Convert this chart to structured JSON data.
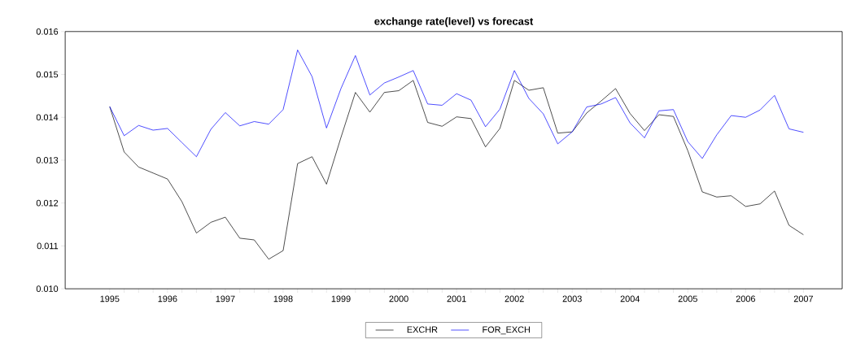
{
  "chart_data": {
    "type": "line",
    "title": "exchange rate(level) vs forecast",
    "x": [
      1995,
      1995.25,
      1995.5,
      1995.75,
      1996,
      1996.25,
      1996.5,
      1996.75,
      1997,
      1997.25,
      1997.5,
      1997.75,
      1998,
      1998.25,
      1998.5,
      1998.75,
      1999,
      1999.25,
      1999.5,
      1999.75,
      2000,
      2000.25,
      2000.5,
      2000.75,
      2001,
      2001.25,
      2001.5,
      2001.75,
      2002,
      2002.25,
      2002.5,
      2002.75,
      2003,
      2003.25,
      2003.5,
      2003.75,
      2004,
      2004.25,
      2004.5,
      2004.75,
      2005,
      2005.25,
      2005.5,
      2005.75,
      2006,
      2006.25,
      2006.5,
      2006.75,
      2007
    ],
    "series": [
      {
        "name": "EXCHR",
        "color": "#000000",
        "values": [
          0.01425,
          0.01319,
          0.01284,
          0.0127,
          0.01256,
          0.01203,
          0.0113,
          0.01155,
          0.01167,
          0.01118,
          0.01114,
          0.01069,
          0.01089,
          0.01292,
          0.01308,
          0.01244,
          0.01353,
          0.01458,
          0.01412,
          0.01458,
          0.01462,
          0.01486,
          0.01388,
          0.01379,
          0.01401,
          0.01397,
          0.01331,
          0.01374,
          0.01486,
          0.01463,
          0.01469,
          0.01363,
          0.01366,
          0.0141,
          0.01438,
          0.01467,
          0.01409,
          0.01369,
          0.01406,
          0.01402,
          0.01322,
          0.01226,
          0.01214,
          0.01217,
          0.01192,
          0.01198,
          0.01228,
          0.01148,
          0.01126
        ]
      },
      {
        "name": "FOR_EXCH",
        "color": "#0000ff",
        "values": [
          0.01425,
          0.01357,
          0.01381,
          0.0137,
          0.01374,
          0.01341,
          0.01308,
          0.01372,
          0.01411,
          0.0138,
          0.0139,
          0.01384,
          0.01418,
          0.01557,
          0.01495,
          0.01375,
          0.01467,
          0.01544,
          0.01452,
          0.0148,
          0.01494,
          0.01509,
          0.01431,
          0.01428,
          0.01455,
          0.0144,
          0.01378,
          0.01419,
          0.01509,
          0.01444,
          0.01408,
          0.01338,
          0.01366,
          0.01424,
          0.01431,
          0.01446,
          0.01387,
          0.01352,
          0.01415,
          0.01418,
          0.01343,
          0.01304,
          0.01359,
          0.01404,
          0.014,
          0.01417,
          0.01451,
          0.01373,
          0.01365
        ]
      }
    ],
    "xlim": [
      1994.23,
      2007.67
    ],
    "xticks": [
      {
        "value": 1995,
        "label": "1995"
      },
      {
        "value": 1995.25,
        "label": null
      },
      {
        "value": 1995.5,
        "label": null
      },
      {
        "value": 1995.75,
        "label": null
      },
      {
        "value": 1996,
        "label": "1996"
      },
      {
        "value": 1996.25,
        "label": null
      },
      {
        "value": 1996.5,
        "label": null
      },
      {
        "value": 1996.75,
        "label": null
      },
      {
        "value": 1997,
        "label": "1997"
      },
      {
        "value": 1997.25,
        "label": null
      },
      {
        "value": 1997.5,
        "label": null
      },
      {
        "value": 1997.75,
        "label": null
      },
      {
        "value": 1998,
        "label": "1998"
      },
      {
        "value": 1998.25,
        "label": null
      },
      {
        "value": 1998.5,
        "label": null
      },
      {
        "value": 1998.75,
        "label": null
      },
      {
        "value": 1999,
        "label": "1999"
      },
      {
        "value": 1999.25,
        "label": null
      },
      {
        "value": 1999.5,
        "label": null
      },
      {
        "value": 1999.75,
        "label": null
      },
      {
        "value": 2000,
        "label": "2000"
      },
      {
        "value": 2000.25,
        "label": null
      },
      {
        "value": 2000.5,
        "label": null
      },
      {
        "value": 2000.75,
        "label": null
      },
      {
        "value": 2001,
        "label": "2001"
      },
      {
        "value": 2001.25,
        "label": null
      },
      {
        "value": 2001.5,
        "label": null
      },
      {
        "value": 2001.75,
        "label": null
      },
      {
        "value": 2002,
        "label": "2002"
      },
      {
        "value": 2002.25,
        "label": null
      },
      {
        "value": 2002.5,
        "label": null
      },
      {
        "value": 2002.75,
        "label": null
      },
      {
        "value": 2003,
        "label": "2003"
      },
      {
        "value": 2003.25,
        "label": null
      },
      {
        "value": 2003.5,
        "label": null
      },
      {
        "value": 2003.75,
        "label": null
      },
      {
        "value": 2004,
        "label": "2004"
      },
      {
        "value": 2004.25,
        "label": null
      },
      {
        "value": 2004.5,
        "label": null
      },
      {
        "value": 2004.75,
        "label": null
      },
      {
        "value": 2005,
        "label": "2005"
      },
      {
        "value": 2005.25,
        "label": null
      },
      {
        "value": 2005.5,
        "label": null
      },
      {
        "value": 2005.75,
        "label": null
      },
      {
        "value": 2006,
        "label": "2006"
      },
      {
        "value": 2006.25,
        "label": null
      },
      {
        "value": 2006.5,
        "label": null
      },
      {
        "value": 2006.75,
        "label": null
      },
      {
        "value": 2007,
        "label": "2007"
      }
    ],
    "ylim": [
      0.01,
      0.016
    ],
    "yticks": [
      {
        "value": 0.01,
        "label": "0.010"
      },
      {
        "value": 0.011,
        "label": "0.011"
      },
      {
        "value": 0.012,
        "label": "0.012"
      },
      {
        "value": 0.013,
        "label": "0.013"
      },
      {
        "value": 0.014,
        "label": "0.014"
      },
      {
        "value": 0.015,
        "label": "0.015"
      },
      {
        "value": 0.016,
        "label": "0.016"
      }
    ],
    "legend": "bottom"
  }
}
